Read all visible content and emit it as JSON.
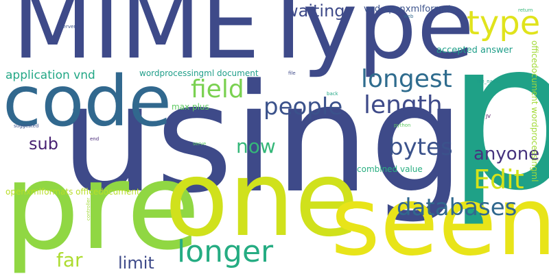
{
  "words": [
    {
      "text": "MIMEType",
      "color": "#3e4a89"
    },
    {
      "text": "p",
      "color": "#1fa187"
    },
    {
      "text": "using",
      "color": "#3e4a89"
    },
    {
      "text": "code",
      "color": "#31688e"
    },
    {
      "text": "pre",
      "color": "#90d743"
    },
    {
      "text": "one",
      "color": "#d0e11c"
    },
    {
      "text": "seen",
      "color": "#e8e419"
    },
    {
      "text": "type",
      "color": "#e0e31c"
    },
    {
      "text": "waiting",
      "color": "#3e4a89"
    },
    {
      "text": "longest",
      "color": "#2f6c8e"
    },
    {
      "text": "field",
      "color": "#7ad151"
    },
    {
      "text": "people",
      "color": "#3b528b"
    },
    {
      "text": "length",
      "color": "#3e4a89"
    },
    {
      "text": "bytes",
      "color": "#3b528b"
    },
    {
      "text": "anyone",
      "color": "#46337e"
    },
    {
      "text": "Edit",
      "color": "#d5e21a"
    },
    {
      "text": "sub",
      "color": "#482173"
    },
    {
      "text": "now",
      "color": "#35b779"
    },
    {
      "text": "databases",
      "color": "#31688e"
    },
    {
      "text": "longer",
      "color": "#25ac82"
    },
    {
      "text": "far",
      "color": "#addc30"
    },
    {
      "text": "limit",
      "color": "#3e4a89"
    },
    {
      "text": "application vnd",
      "color": "#22a785"
    },
    {
      "text": "wordprocessingml document",
      "color": "#1f9e89"
    },
    {
      "text": "vnd openxmlformats",
      "color": "#3b528b"
    },
    {
      "text": "accepted answer",
      "color": "#1f9e89"
    },
    {
      "text": "officedocument wordprocessingml",
      "color": "#a2da37"
    },
    {
      "text": "max plus",
      "color": "#5ec962"
    },
    {
      "text": "combined value",
      "color": "#28ae80"
    },
    {
      "text": "openxmlformats officedocument",
      "color": "#b8de29"
    },
    {
      "text": "server",
      "color": "#3b528b"
    },
    {
      "text": "web",
      "color": "#31688e"
    },
    {
      "text": "return",
      "color": "#35b779"
    },
    {
      "text": "file",
      "color": "#3e4a89"
    },
    {
      "text": "back",
      "color": "#22a785"
    },
    {
      "text": "file_name",
      "color": "#1f9e89"
    },
    {
      "text": "python",
      "color": "#5ec962"
    },
    {
      "text": "JV",
      "color": "#440154"
    },
    {
      "text": "suggested",
      "color": "#3b528b"
    },
    {
      "text": "end",
      "color": "#482878"
    },
    {
      "text": "serve",
      "color": "#5ec962"
    },
    {
      "text": "controller",
      "color": "#a2da37"
    }
  ]
}
